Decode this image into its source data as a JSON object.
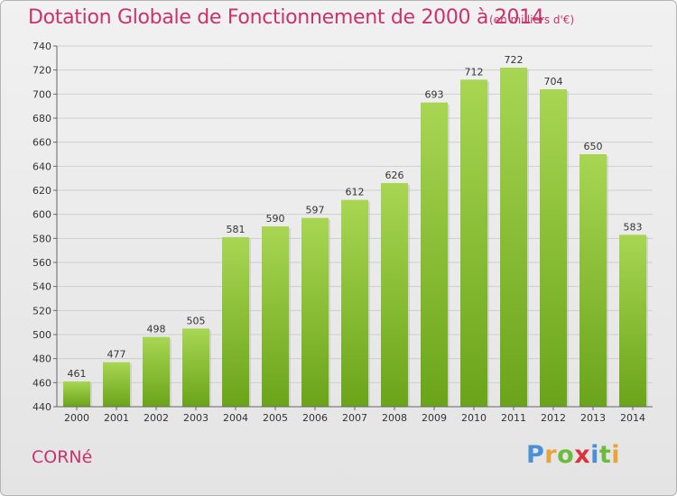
{
  "header": {
    "title": "Dotation Globale de Fonctionnement de 2000 à 2014",
    "unit": "(en milliers d'€)"
  },
  "commune": "CORNé",
  "logo": {
    "text": "Proxiti",
    "letter_colors": [
      "#4a90d9",
      "#e8a33c",
      "#6dbb3c",
      "#d9343b",
      "#4a90d9",
      "#6dbb3c",
      "#e8a33c"
    ]
  },
  "colors": {
    "bar_light": "#a8d653",
    "bar_dark": "#6aa419",
    "title": "#c8336b"
  },
  "chart_data": {
    "type": "bar",
    "title": "Dotation Globale de Fonctionnement de 2000 à 2014",
    "subtitle": "(en milliers d'€)",
    "xlabel": "",
    "ylabel": "",
    "categories": [
      "2000",
      "2001",
      "2002",
      "2003",
      "2004",
      "2005",
      "2006",
      "2007",
      "2008",
      "2009",
      "2010",
      "2011",
      "2012",
      "2013",
      "2014"
    ],
    "values": [
      461,
      477,
      498,
      505,
      581,
      590,
      597,
      612,
      626,
      693,
      712,
      722,
      704,
      650,
      583
    ],
    "ylim": [
      440,
      740
    ],
    "yticks": [
      440,
      460,
      480,
      500,
      520,
      540,
      560,
      580,
      600,
      620,
      640,
      660,
      680,
      700,
      720,
      740
    ],
    "grid": true
  }
}
